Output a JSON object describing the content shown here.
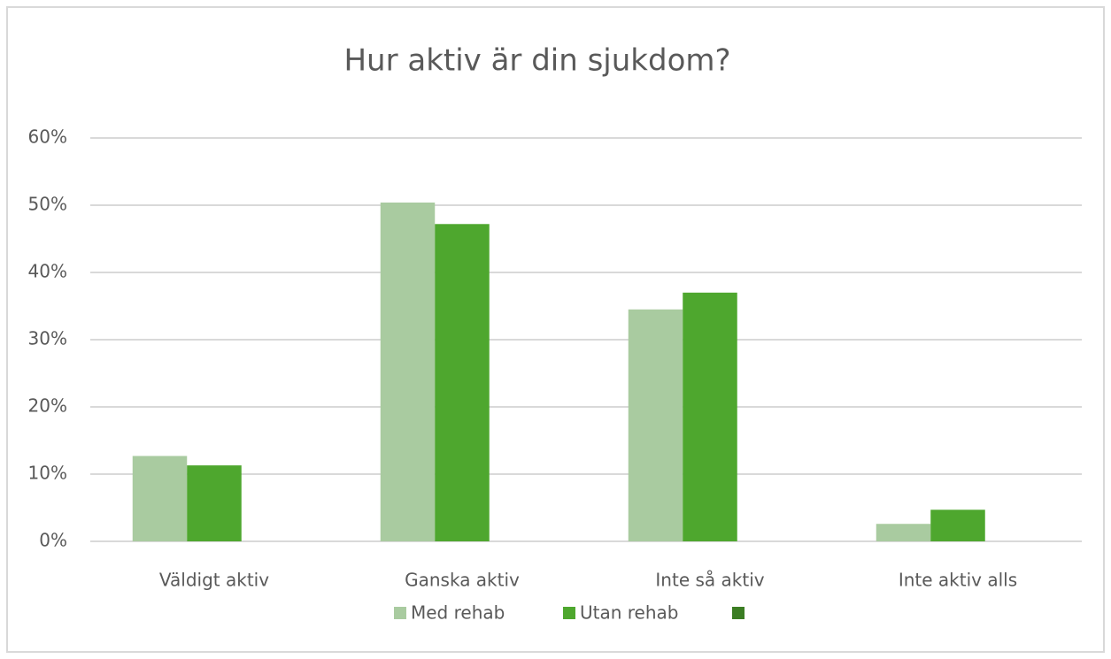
{
  "chart_data": {
    "type": "bar",
    "title": "Hur aktiv är din sjukdom?",
    "categories": [
      "Väldigt aktiv",
      "Ganska aktiv",
      "Inte så aktiv",
      "Inte aktiv alls"
    ],
    "series": [
      {
        "name": "Med rehab",
        "color": "#a9cba0",
        "values": [
          12.7,
          50.4,
          34.5,
          2.6
        ]
      },
      {
        "name": "Utan rehab",
        "color": "#4ea72e",
        "values": [
          11.3,
          47.2,
          37.0,
          4.7
        ]
      },
      {
        "color": "#3b7d23",
        "values": [
          null,
          null,
          null,
          null
        ]
      }
    ],
    "ylim": [
      0,
      60
    ],
    "yticks": [
      {
        "value": 0,
        "label": "0%"
      },
      {
        "value": 10,
        "label": "10%"
      },
      {
        "value": 20,
        "label": "20%"
      },
      {
        "value": 30,
        "label": "30%"
      },
      {
        "value": 40,
        "label": "40%"
      },
      {
        "value": 50,
        "label": "50%"
      },
      {
        "value": 60,
        "label": "60%"
      }
    ],
    "grid": true,
    "legend": "bottom"
  }
}
